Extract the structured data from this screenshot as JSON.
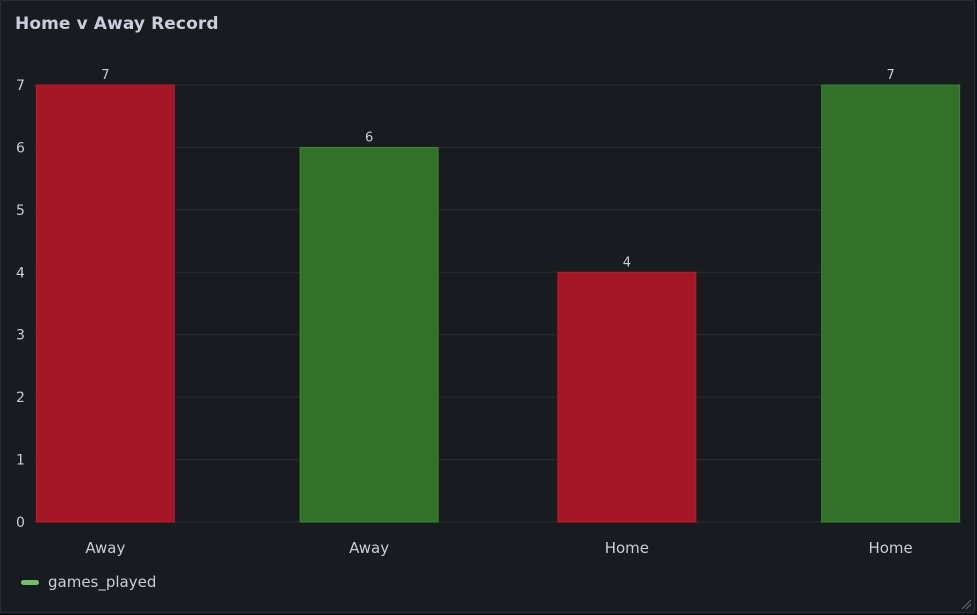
{
  "panel": {
    "title": "Home v Away Record"
  },
  "legend": {
    "label": "games_played",
    "color": "#73bf69"
  },
  "colors": {
    "red": "#a31726",
    "red_border": "#c4162a",
    "green": "#31712a",
    "green_border": "#37872d",
    "grid": "#2b2e33",
    "text": "#ccccdc"
  },
  "chart_data": {
    "type": "bar",
    "title": "Home v Away Record",
    "categories": [
      "Away",
      "Away",
      "Home",
      "Home"
    ],
    "series": [
      {
        "name": "games_played",
        "values": [
          7,
          6,
          4,
          7
        ],
        "bar_colors": [
          "#a31726",
          "#31712a",
          "#a31726",
          "#31712a"
        ]
      }
    ],
    "ylim": [
      0,
      7
    ],
    "yticks": [
      0,
      1,
      2,
      3,
      4,
      5,
      6,
      7
    ],
    "grid": true,
    "legend_position": "bottom-left",
    "value_labels": true
  }
}
